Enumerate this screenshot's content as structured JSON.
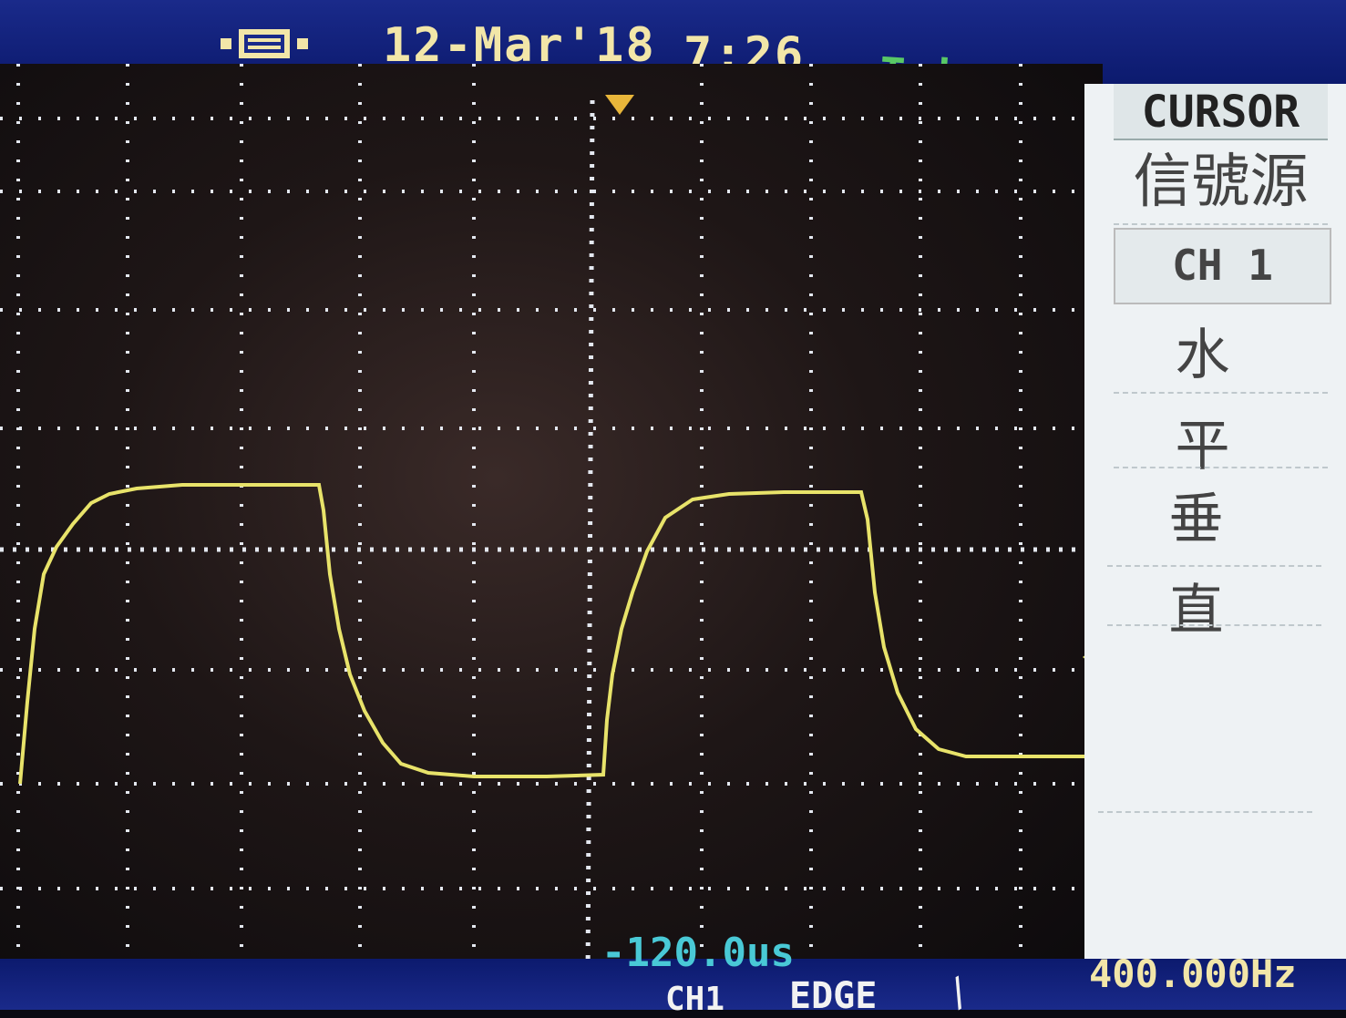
{
  "header": {
    "date": "12-Mar'18",
    "time": "7:26",
    "trigger_status": "Trig'd",
    "usb_icon": "usb-connection-icon",
    "trigger_icon": "rising-edge-pulse-icon"
  },
  "menu": {
    "title": "CURSOR",
    "items": [
      {
        "label": "信號源",
        "value": "CH 1"
      },
      {
        "label": "水 平",
        "value": ""
      },
      {
        "label": "垂 直",
        "value": ""
      }
    ]
  },
  "status_bar": {
    "cursor_time": "-120.0us",
    "channel": "CH1",
    "trigger_type": "EDGE",
    "trigger_slope_icon": "rising-slope-icon",
    "frequency": "400.000Hz"
  },
  "colors": {
    "trace": "#e8e36a",
    "grid": "#dfe4ec",
    "accent_cursor": "#49c9d6",
    "bar": "#0c1a6e"
  }
}
